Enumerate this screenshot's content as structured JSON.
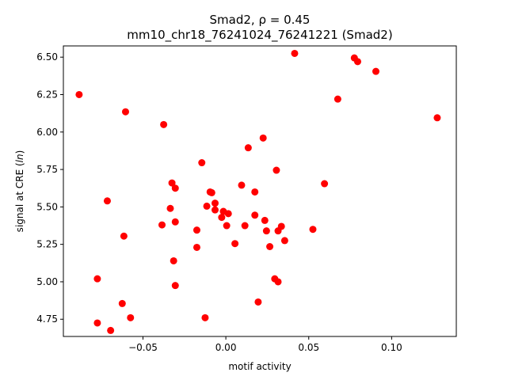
{
  "chart_data": {
    "type": "scatter",
    "title_line1": "Smad2, ρ = 0.45",
    "title_line2": "mm10_chr18_76241024_76241221 (Smad2)",
    "xlabel": "motif activity",
    "ylabel_prefix": "signal at CRE (",
    "ylabel_italic": "ln",
    "ylabel_suffix": ")",
    "xlim": [
      -0.098,
      0.139
    ],
    "ylim": [
      4.635,
      6.575
    ],
    "x_ticks": [
      {
        "value": -0.05,
        "label": "−0.05"
      },
      {
        "value": 0.0,
        "label": "0.00"
      },
      {
        "value": 0.05,
        "label": "0.05"
      },
      {
        "value": 0.1,
        "label": "0.10"
      }
    ],
    "y_ticks": [
      {
        "value": 4.75,
        "label": "4.75"
      },
      {
        "value": 5.0,
        "label": "5.00"
      },
      {
        "value": 5.25,
        "label": "5.25"
      },
      {
        "value": 5.5,
        "label": "5.50"
      },
      {
        "value": 5.75,
        "label": "5.75"
      },
      {
        "value": 6.0,
        "label": "6.00"
      },
      {
        "value": 6.25,
        "label": "6.25"
      },
      {
        "value": 6.5,
        "label": "6.50"
      }
    ],
    "grid": false,
    "marker_color": "#ff0000",
    "points": [
      {
        "x": -0.0885,
        "y": 6.25
      },
      {
        "x": -0.0605,
        "y": 6.135
      },
      {
        "x": -0.0375,
        "y": 6.05
      },
      {
        "x": -0.0715,
        "y": 5.54
      },
      {
        "x": -0.0775,
        "y": 5.02
      },
      {
        "x": -0.0775,
        "y": 4.725
      },
      {
        "x": -0.0695,
        "y": 4.675
      },
      {
        "x": -0.0625,
        "y": 4.855
      },
      {
        "x": -0.0615,
        "y": 5.305
      },
      {
        "x": -0.0575,
        "y": 4.76
      },
      {
        "x": -0.0385,
        "y": 5.38
      },
      {
        "x": -0.0335,
        "y": 5.49
      },
      {
        "x": -0.0325,
        "y": 5.66
      },
      {
        "x": -0.0305,
        "y": 5.625
      },
      {
        "x": -0.0315,
        "y": 5.14
      },
      {
        "x": -0.0305,
        "y": 4.975
      },
      {
        "x": -0.0305,
        "y": 5.4
      },
      {
        "x": -0.0175,
        "y": 5.345
      },
      {
        "x": -0.0175,
        "y": 5.23
      },
      {
        "x": -0.0145,
        "y": 5.795
      },
      {
        "x": -0.0125,
        "y": 4.76
      },
      {
        "x": -0.0115,
        "y": 5.505
      },
      {
        "x": -0.0095,
        "y": 5.6
      },
      {
        "x": -0.0085,
        "y": 5.595
      },
      {
        "x": -0.0065,
        "y": 5.525
      },
      {
        "x": -0.0065,
        "y": 5.48
      },
      {
        "x": -0.0025,
        "y": 5.43
      },
      {
        "x": -0.0015,
        "y": 5.47
      },
      {
        "x": 0.0005,
        "y": 5.375
      },
      {
        "x": 0.0015,
        "y": 5.455
      },
      {
        "x": 0.0055,
        "y": 5.255
      },
      {
        "x": 0.0095,
        "y": 5.645
      },
      {
        "x": 0.0115,
        "y": 5.375
      },
      {
        "x": 0.0135,
        "y": 5.895
      },
      {
        "x": 0.0175,
        "y": 5.445
      },
      {
        "x": 0.0175,
        "y": 5.6
      },
      {
        "x": 0.0195,
        "y": 4.865
      },
      {
        "x": 0.0225,
        "y": 5.96
      },
      {
        "x": 0.0235,
        "y": 5.41
      },
      {
        "x": 0.0245,
        "y": 5.34
      },
      {
        "x": 0.0265,
        "y": 5.235
      },
      {
        "x": 0.0295,
        "y": 5.02
      },
      {
        "x": 0.0305,
        "y": 5.745
      },
      {
        "x": 0.0315,
        "y": 5.34
      },
      {
        "x": 0.0315,
        "y": 5.0
      },
      {
        "x": 0.0335,
        "y": 5.37
      },
      {
        "x": 0.0355,
        "y": 5.275
      },
      {
        "x": 0.0415,
        "y": 6.525
      },
      {
        "x": 0.0525,
        "y": 5.35
      },
      {
        "x": 0.0595,
        "y": 5.655
      },
      {
        "x": 0.0675,
        "y": 6.22
      },
      {
        "x": 0.0775,
        "y": 6.495
      },
      {
        "x": 0.0795,
        "y": 6.47
      },
      {
        "x": 0.0905,
        "y": 6.405
      },
      {
        "x": 0.1275,
        "y": 6.095
      }
    ]
  }
}
